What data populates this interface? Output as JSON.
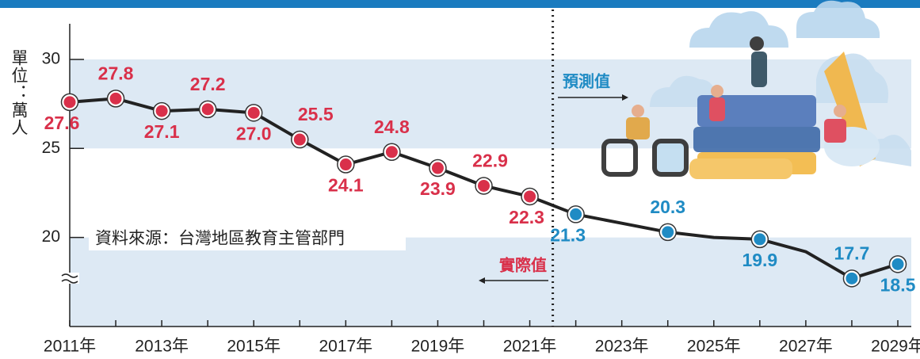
{
  "chart_data": {
    "type": "line",
    "y_label": "單位：萬人",
    "source": "資料來源：台灣地區教育主管部門",
    "categories": [
      "2011年",
      null,
      "2013年",
      null,
      "2015年",
      null,
      "2017年",
      null,
      "2019年",
      null,
      "2021年",
      null,
      "2023年",
      null,
      "2025年",
      null,
      "2027年",
      null,
      "2029年"
    ],
    "series": [
      {
        "name": "實際值",
        "color": "#d9304a",
        "values": [
          27.6,
          27.8,
          27.1,
          27.2,
          27.0,
          25.5,
          24.1,
          24.8,
          23.9,
          22.9,
          22.3,
          null,
          null,
          null,
          null,
          null,
          null,
          null,
          null
        ],
        "value_labels": [
          "27.6",
          "27.8",
          "27.1",
          "27.2",
          "27.0",
          "25.5",
          "24.1",
          "24.8",
          "23.9",
          "22.9",
          "22.3",
          null,
          null,
          null,
          null,
          null,
          null,
          null,
          null
        ]
      },
      {
        "name": "預測值",
        "color": "#1f8bc4",
        "values": [
          null,
          null,
          null,
          null,
          null,
          null,
          null,
          null,
          null,
          null,
          null,
          21.3,
          20.8,
          20.3,
          20.0,
          19.9,
          19.2,
          17.7,
          18.5
        ],
        "value_labels": [
          null,
          null,
          null,
          null,
          null,
          null,
          null,
          null,
          null,
          null,
          null,
          "21.3",
          null,
          "20.3",
          null,
          "19.9",
          null,
          "17.7",
          "18.5"
        ]
      }
    ],
    "line_color": "#222222",
    "band_color": "#dde9f4",
    "ylim": [
      15,
      32
    ],
    "yticks": [
      20,
      25,
      30
    ]
  }
}
